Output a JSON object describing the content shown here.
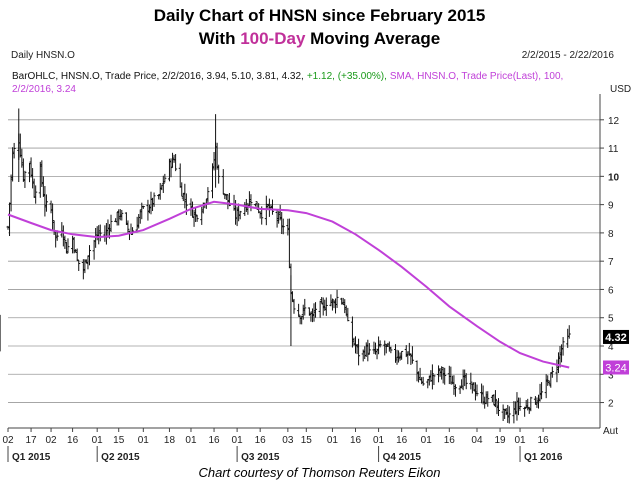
{
  "header": {
    "line1": "Daily Chart of HNSN since February 2015",
    "line2_prefix": "With ",
    "line2_highlight": "100-Day",
    "line2_suffix": " Moving Average"
  },
  "footer": {
    "credit": "Chart courtesy of Thomson Reuters Eikon"
  },
  "colors": {
    "sma": "#c040d8",
    "bars": "#111111",
    "grid": "#9a9a9a",
    "sma_label_bg": "#c040d8",
    "price_label_bg": "#000000"
  },
  "chart_data": {
    "type": "bar",
    "subtype": "OHLC",
    "title": "Daily HNSN.O",
    "date_range_label": "2/2/2015 - 2/22/2016",
    "legend": {
      "series_line": "BarOHLC, HNSN.O, Trade Price, 2/2/2016, 3.94, 5.10, 3.81, 4.32,",
      "change_text": "+1.12, (+35.00%),",
      "sma_line": "SMA, HNSN.O, Trade Price(Last), 100,",
      "sma_line2": "2/2/2016, 3.24"
    },
    "last_bar": {
      "date": "2/2/2016",
      "open": 3.94,
      "high": 5.1,
      "low": 3.81,
      "close": 4.32,
      "change": 1.12,
      "change_pct": 35.0
    },
    "sma": {
      "period": 100,
      "last_value": 3.24
    },
    "currency_label": "USD",
    "y_axis": {
      "ticks": [
        2,
        3,
        4,
        5,
        6,
        7,
        8,
        9,
        10,
        11,
        12
      ],
      "bold_ticks": [
        10
      ],
      "ylim": [
        1.1,
        12.7
      ]
    },
    "price_label": "4.32",
    "sma_label": "3.24",
    "x_tick_labels": [
      "02",
      "17",
      "02",
      "16",
      "01",
      "15",
      "01",
      "18",
      "01",
      "16",
      "01",
      "16",
      "03",
      "15",
      "01",
      "16",
      "01",
      "16",
      "01",
      "16",
      "04",
      "19",
      "01",
      "16"
    ],
    "x_tick_dates": [
      "2015-02-02",
      "2015-02-17",
      "2015-03-02",
      "2015-03-16",
      "2015-04-01",
      "2015-04-15",
      "2015-05-01",
      "2015-05-18",
      "2015-06-01",
      "2015-06-16",
      "2015-07-01",
      "2015-07-16",
      "2015-08-03",
      "2015-08-15",
      "2015-09-01",
      "2015-09-16",
      "2015-10-01",
      "2015-10-16",
      "2015-11-01",
      "2015-11-16",
      "2015-12-04",
      "2015-12-19",
      "2016-01-01",
      "2016-01-16"
    ],
    "x_end_label": "Aut",
    "quarters": [
      {
        "label": "Q1 2015",
        "start": "2015-02-02",
        "end": "2015-04-01"
      },
      {
        "label": "Q2 2015",
        "start": "2015-04-01",
        "end": "2015-07-01"
      },
      {
        "label": "Q3 2015",
        "start": "2015-07-01",
        "end": "2015-10-01"
      },
      {
        "label": "Q4 2015",
        "start": "2015-10-01",
        "end": "2016-01-01"
      },
      {
        "label": "Q1 2016",
        "start": "2016-01-01",
        "end": "2016-02-22"
      }
    ],
    "close_path": [
      [
        "2015-02-02",
        8.2
      ],
      [
        "2015-02-05",
        10.8
      ],
      [
        "2015-02-09",
        11.3
      ],
      [
        "2015-02-12",
        10.0
      ],
      [
        "2015-02-16",
        10.5
      ],
      [
        "2015-02-19",
        9.4
      ],
      [
        "2015-02-23",
        10.2
      ],
      [
        "2015-02-26",
        9.0
      ],
      [
        "2015-03-02",
        8.8
      ],
      [
        "2015-03-05",
        7.8
      ],
      [
        "2015-03-09",
        8.2
      ],
      [
        "2015-03-12",
        7.4
      ],
      [
        "2015-03-16",
        7.8
      ],
      [
        "2015-03-19",
        7.0
      ],
      [
        "2015-03-23",
        6.7
      ],
      [
        "2015-03-26",
        7.3
      ],
      [
        "2015-03-30",
        7.7
      ],
      [
        "2015-04-02",
        8.0
      ],
      [
        "2015-04-06",
        7.9
      ],
      [
        "2015-04-09",
        8.3
      ],
      [
        "2015-04-13",
        8.5
      ],
      [
        "2015-04-16",
        8.7
      ],
      [
        "2015-04-20",
        8.2
      ],
      [
        "2015-04-23",
        8.0
      ],
      [
        "2015-04-27",
        8.4
      ],
      [
        "2015-04-30",
        8.8
      ],
      [
        "2015-05-04",
        8.9
      ],
      [
        "2015-05-07",
        9.1
      ],
      [
        "2015-05-11",
        9.3
      ],
      [
        "2015-05-14",
        9.8
      ],
      [
        "2015-05-18",
        10.4
      ],
      [
        "2015-05-21",
        10.6
      ],
      [
        "2015-05-25",
        9.6
      ],
      [
        "2015-05-28",
        9.2
      ],
      [
        "2015-06-01",
        8.8
      ],
      [
        "2015-06-04",
        8.6
      ],
      [
        "2015-06-08",
        8.9
      ],
      [
        "2015-06-11",
        9.3
      ],
      [
        "2015-06-15",
        10.2
      ],
      [
        "2015-06-17",
        11.0
      ],
      [
        "2015-06-19",
        9.9
      ],
      [
        "2015-06-23",
        9.4
      ],
      [
        "2015-06-26",
        9.0
      ],
      [
        "2015-06-30",
        8.6
      ],
      [
        "2015-07-03",
        8.8
      ],
      [
        "2015-07-07",
        9.0
      ],
      [
        "2015-07-10",
        9.2
      ],
      [
        "2015-07-14",
        8.9
      ],
      [
        "2015-07-17",
        8.7
      ],
      [
        "2015-07-21",
        8.9
      ],
      [
        "2015-07-24",
        8.7
      ],
      [
        "2015-07-28",
        8.5
      ],
      [
        "2015-07-31",
        8.2
      ],
      [
        "2015-08-03",
        8.0
      ],
      [
        "2015-08-05",
        5.9
      ],
      [
        "2015-08-08",
        5.2
      ],
      [
        "2015-08-12",
        5.1
      ],
      [
        "2015-08-15",
        5.4
      ],
      [
        "2015-08-19",
        5.0
      ],
      [
        "2015-08-22",
        5.5
      ],
      [
        "2015-08-26",
        5.3
      ],
      [
        "2015-08-29",
        5.7
      ],
      [
        "2015-09-02",
        5.5
      ],
      [
        "2015-09-05",
        5.8
      ],
      [
        "2015-09-09",
        5.4
      ],
      [
        "2015-09-12",
        4.4
      ],
      [
        "2015-09-16",
        4.0
      ],
      [
        "2015-09-19",
        3.6
      ],
      [
        "2015-09-23",
        3.9
      ],
      [
        "2015-09-26",
        3.7
      ],
      [
        "2015-09-30",
        3.8
      ],
      [
        "2015-10-03",
        4.1
      ],
      [
        "2015-10-07",
        3.9
      ],
      [
        "2015-10-10",
        3.6
      ],
      [
        "2015-10-14",
        3.7
      ],
      [
        "2015-10-17",
        3.8
      ],
      [
        "2015-10-21",
        3.7
      ],
      [
        "2015-10-24",
        3.3
      ],
      [
        "2015-10-28",
        2.8
      ],
      [
        "2015-10-31",
        2.6
      ],
      [
        "2015-11-04",
        2.9
      ],
      [
        "2015-11-07",
        3.0
      ],
      [
        "2015-11-11",
        3.1
      ],
      [
        "2015-11-14",
        2.9
      ],
      [
        "2015-11-18",
        2.7
      ],
      [
        "2015-11-21",
        2.6
      ],
      [
        "2015-11-25",
        2.8
      ],
      [
        "2015-11-28",
        2.6
      ],
      [
        "2015-12-02",
        2.5
      ],
      [
        "2015-12-05",
        2.3
      ],
      [
        "2015-12-09",
        2.1
      ],
      [
        "2015-12-12",
        2.2
      ],
      [
        "2015-12-16",
        2.0
      ],
      [
        "2015-12-19",
        1.7
      ],
      [
        "2015-12-23",
        1.5
      ],
      [
        "2015-12-27",
        1.6
      ],
      [
        "2015-12-30",
        1.9
      ],
      [
        "2016-01-04",
        1.8
      ],
      [
        "2016-01-08",
        2.0
      ],
      [
        "2016-01-12",
        2.1
      ],
      [
        "2016-01-16",
        2.4
      ],
      [
        "2016-01-20",
        2.8
      ],
      [
        "2016-01-24",
        3.2
      ],
      [
        "2016-01-28",
        3.9
      ],
      [
        "2016-02-02",
        4.32
      ]
    ],
    "sma_path": [
      [
        "2015-02-02",
        8.65
      ],
      [
        "2015-02-17",
        8.35
      ],
      [
        "2015-03-02",
        8.1
      ],
      [
        "2015-03-16",
        7.95
      ],
      [
        "2015-04-01",
        7.85
      ],
      [
        "2015-04-15",
        7.9
      ],
      [
        "2015-05-01",
        8.1
      ],
      [
        "2015-05-18",
        8.5
      ],
      [
        "2015-06-01",
        8.85
      ],
      [
        "2015-06-16",
        9.1
      ],
      [
        "2015-07-01",
        9.0
      ],
      [
        "2015-07-16",
        8.85
      ],
      [
        "2015-08-03",
        8.8
      ],
      [
        "2015-08-15",
        8.7
      ],
      [
        "2015-09-01",
        8.4
      ],
      [
        "2015-09-16",
        7.95
      ],
      [
        "2015-10-01",
        7.4
      ],
      [
        "2015-10-16",
        6.8
      ],
      [
        "2015-11-01",
        6.1
      ],
      [
        "2015-11-16",
        5.4
      ],
      [
        "2015-12-04",
        4.7
      ],
      [
        "2015-12-19",
        4.15
      ],
      [
        "2016-01-01",
        3.75
      ],
      [
        "2016-01-16",
        3.45
      ],
      [
        "2016-02-02",
        3.24
      ]
    ]
  }
}
